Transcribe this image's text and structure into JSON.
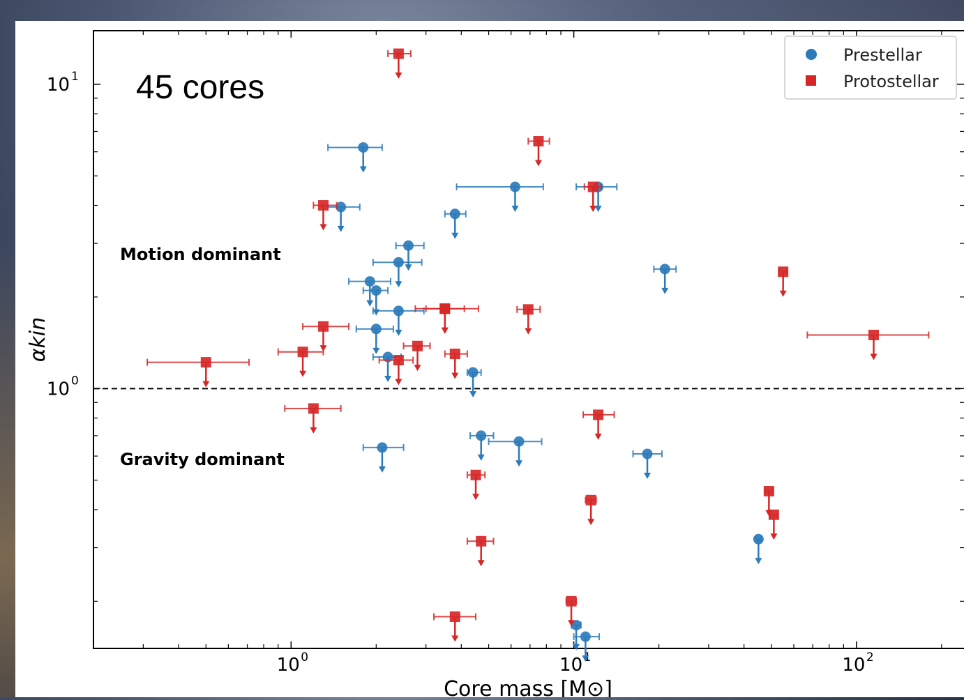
{
  "colors": {
    "prestellar": "#2b7bba",
    "protostellar": "#d62728",
    "axis": "#000000"
  },
  "chart_data": {
    "type": "scatter",
    "annotation_count": "45 cores",
    "region_labels": {
      "upper": "Motion dominant",
      "lower": "Gravity dominant"
    },
    "xlabel": "Core mass [M⊙]",
    "ylabel": "αkin",
    "xscale": "log",
    "yscale": "log",
    "xlim": [
      0.2,
      240
    ],
    "ylim": [
      0.14,
      15
    ],
    "x_tick_labels": [
      "10",
      "10",
      "10"
    ],
    "x_tick_exponents": [
      "0",
      "1",
      "2"
    ],
    "y_tick_labels": [
      "10",
      "10"
    ],
    "y_tick_exponents": [
      "0",
      "1"
    ],
    "threshold_line": 1.0,
    "legend_position": "top-right",
    "legend": [
      "Prestellar",
      "Protostellar"
    ],
    "upper_limits": true,
    "series": [
      {
        "name": "Prestellar",
        "marker": "circle",
        "points": [
          {
            "x": 1.8,
            "y": 6.2,
            "xlo": 1.35,
            "xhi": 2.1
          },
          {
            "x": 1.5,
            "y": 3.95,
            "xlo": 1.35,
            "xhi": 1.75
          },
          {
            "x": 6.2,
            "y": 4.6,
            "xlo": 3.85,
            "xhi": 7.8
          },
          {
            "x": 12.2,
            "y": 4.6,
            "xlo": 10.2,
            "xhi": 14.2
          },
          {
            "x": 3.8,
            "y": 3.75,
            "xlo": 3.5,
            "xhi": 4.15
          },
          {
            "x": 2.6,
            "y": 2.95,
            "xlo": 2.35,
            "xhi": 2.95
          },
          {
            "x": 2.4,
            "y": 2.6,
            "xlo": 1.95,
            "xhi": 2.9
          },
          {
            "x": 1.9,
            "y": 2.25,
            "xlo": 1.6,
            "xhi": 2.25
          },
          {
            "x": 2.0,
            "y": 2.1,
            "xlo": 1.8,
            "xhi": 2.2
          },
          {
            "x": 2.4,
            "y": 1.8,
            "xlo": 1.95,
            "xhi": 2.95
          },
          {
            "x": 2.0,
            "y": 1.57,
            "xlo": 1.7,
            "xhi": 2.3
          },
          {
            "x": 2.2,
            "y": 1.27,
            "xlo": 1.95,
            "xhi": 2.45
          },
          {
            "x": 4.4,
            "y": 1.13,
            "xlo": 4.2,
            "xhi": 4.7
          },
          {
            "x": 21.0,
            "y": 2.47,
            "xlo": 19.2,
            "xhi": 23.0
          },
          {
            "x": 2.1,
            "y": 0.64,
            "xlo": 1.8,
            "xhi": 2.5
          },
          {
            "x": 4.7,
            "y": 0.7,
            "xlo": 4.3,
            "xhi": 5.2
          },
          {
            "x": 6.4,
            "y": 0.67,
            "xlo": 5.0,
            "xhi": 7.7
          },
          {
            "x": 18.2,
            "y": 0.61,
            "xlo": 16.2,
            "xhi": 20.5
          },
          {
            "x": 45.0,
            "y": 0.32,
            "xlo": 44.0,
            "xhi": 46.0
          },
          {
            "x": 10.2,
            "y": 0.167,
            "xlo": 9.8,
            "xhi": 10.6
          },
          {
            "x": 11.0,
            "y": 0.153,
            "xlo": 10.0,
            "xhi": 12.3
          }
        ]
      },
      {
        "name": "Protostellar",
        "marker": "square",
        "points": [
          {
            "x": 2.4,
            "y": 12.6,
            "xlo": 2.2,
            "xhi": 2.65
          },
          {
            "x": 7.5,
            "y": 6.5,
            "xlo": 6.9,
            "xhi": 8.2
          },
          {
            "x": 1.3,
            "y": 4.0,
            "xlo": 1.2,
            "xhi": 1.45
          },
          {
            "x": 11.7,
            "y": 4.6,
            "xlo": 10.9,
            "xhi": 12.5
          },
          {
            "x": 55.0,
            "y": 2.42,
            "xlo": 53.5,
            "xhi": 56.5
          },
          {
            "x": 3.5,
            "y": 1.83,
            "xlo": 2.75,
            "xhi": 4.6
          },
          {
            "x": 3.5,
            "y": 1.83,
            "xlo": 3.0,
            "xhi": 4.1
          },
          {
            "x": 6.9,
            "y": 1.82,
            "xlo": 6.3,
            "xhi": 7.6
          },
          {
            "x": 1.3,
            "y": 1.6,
            "xlo": 1.1,
            "xhi": 1.6
          },
          {
            "x": 1.1,
            "y": 1.32,
            "xlo": 0.9,
            "xhi": 1.3
          },
          {
            "x": 2.8,
            "y": 1.38,
            "xlo": 2.5,
            "xhi": 3.1
          },
          {
            "x": 3.8,
            "y": 1.3,
            "xlo": 3.5,
            "xhi": 4.2
          },
          {
            "x": 2.4,
            "y": 1.24,
            "xlo": 2.05,
            "xhi": 2.7
          },
          {
            "x": 0.5,
            "y": 1.22,
            "xlo": 0.31,
            "xhi": 0.71
          },
          {
            "x": 115.0,
            "y": 1.5,
            "xlo": 67.0,
            "xhi": 180.0
          },
          {
            "x": 1.2,
            "y": 0.86,
            "xlo": 0.95,
            "xhi": 1.5
          },
          {
            "x": 12.2,
            "y": 0.82,
            "xlo": 10.8,
            "xhi": 13.9
          },
          {
            "x": 4.5,
            "y": 0.52,
            "xlo": 4.2,
            "xhi": 4.85
          },
          {
            "x": 11.5,
            "y": 0.43,
            "xlo": 11.0,
            "xhi": 12.0
          },
          {
            "x": 49.0,
            "y": 0.46,
            "xlo": 47.5,
            "xhi": 50.5
          },
          {
            "x": 51.0,
            "y": 0.385,
            "xlo": 49.5,
            "xhi": 52.5
          },
          {
            "x": 4.7,
            "y": 0.315,
            "xlo": 4.2,
            "xhi": 5.2
          },
          {
            "x": 9.8,
            "y": 0.2,
            "xlo": 9.4,
            "xhi": 10.2
          },
          {
            "x": 3.8,
            "y": 0.178,
            "xlo": 3.2,
            "xhi": 4.5
          }
        ]
      }
    ]
  }
}
